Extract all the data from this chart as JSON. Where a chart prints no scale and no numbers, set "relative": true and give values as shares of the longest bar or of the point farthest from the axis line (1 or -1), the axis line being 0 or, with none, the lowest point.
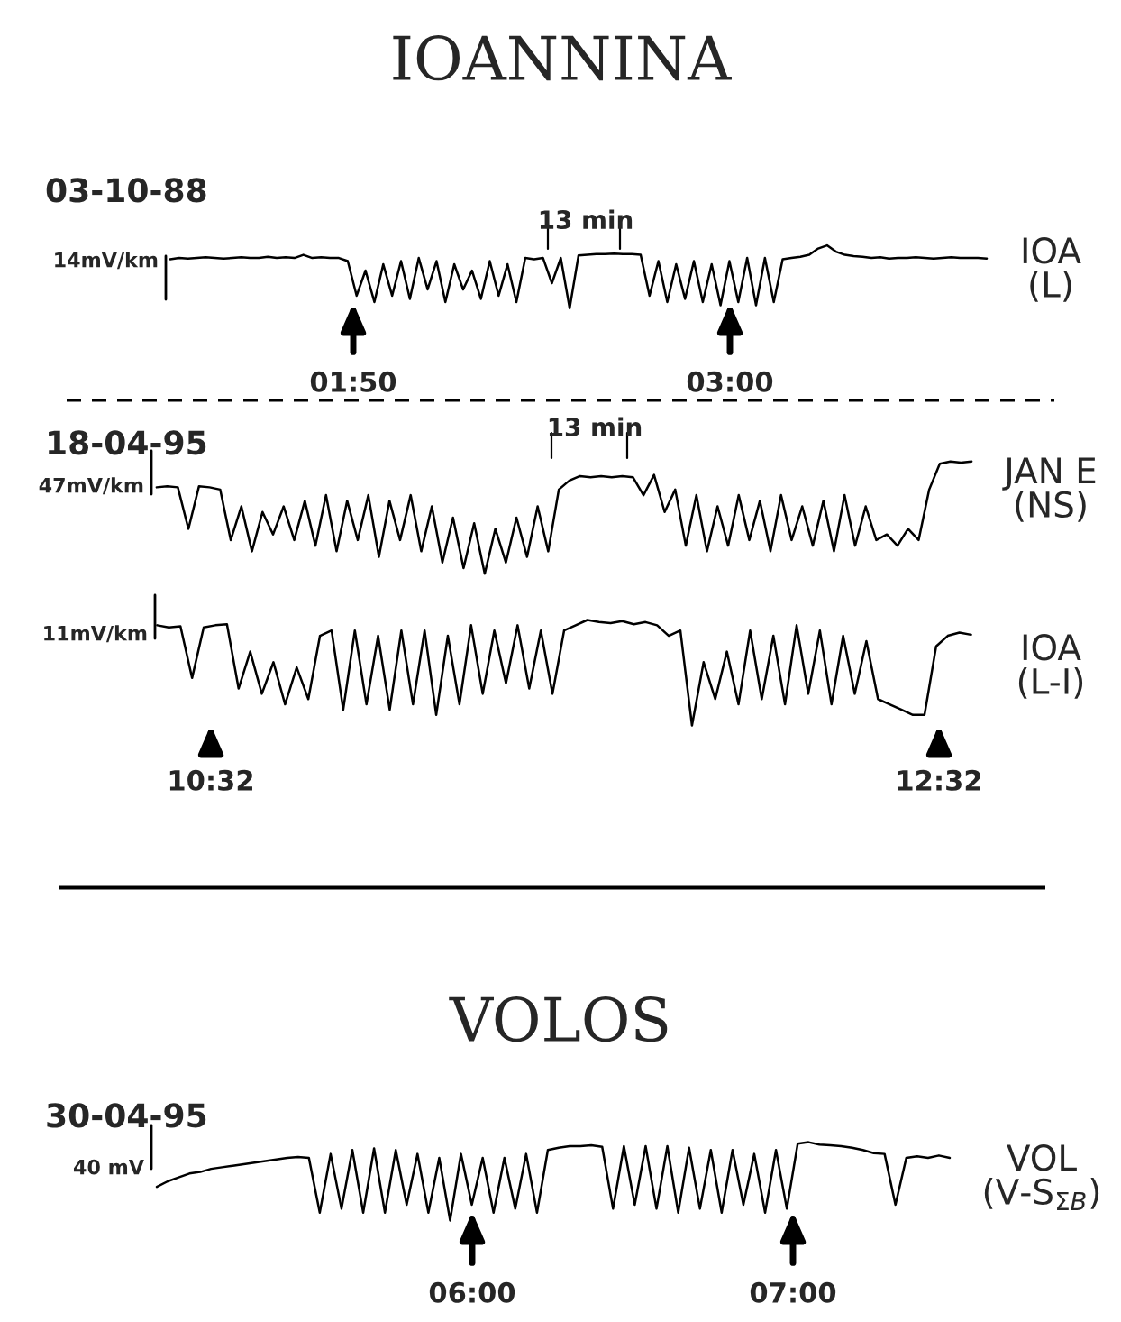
{
  "chart_data": [
    {
      "type": "line",
      "relative": true,
      "title": "IOANNINA",
      "subtitle": "03-10-88",
      "annotations": [
        "14mV/km",
        "13 min",
        "01:50",
        "03:00"
      ],
      "categories": [
        null,
        null,
        null,
        null,
        null,
        null,
        null,
        null,
        null,
        null,
        null,
        null,
        null,
        null,
        null,
        null,
        null,
        null,
        null,
        null,
        null,
        null,
        null,
        null,
        null,
        null,
        null,
        null,
        null,
        null,
        null,
        null,
        null,
        null,
        null,
        null,
        null,
        null,
        null,
        null,
        null,
        null,
        null,
        null,
        null,
        null,
        null,
        null,
        null,
        null,
        null,
        null,
        null,
        null,
        null,
        null,
        null,
        null,
        null,
        null,
        null,
        null,
        null,
        null,
        null,
        null,
        null,
        null,
        null,
        null,
        null,
        null,
        null,
        null,
        null,
        null,
        null,
        null,
        null,
        null,
        null,
        null,
        null,
        null,
        null,
        null,
        null,
        null,
        null,
        null,
        null,
        null,
        null
      ],
      "series": [
        {
          "name": "IOA\n(L)",
          "color": "#000000",
          "values": [
            0.78,
            0.8,
            0.79,
            0.8,
            0.81,
            0.8,
            0.79,
            0.8,
            0.81,
            0.8,
            0.8,
            0.82,
            0.8,
            0.81,
            0.8,
            0.85,
            0.8,
            0.81,
            0.8,
            0.8,
            0.75,
            0.2,
            0.6,
            0.1,
            0.7,
            0.2,
            0.75,
            0.15,
            0.8,
            0.3,
            0.75,
            0.1,
            0.7,
            0.3,
            0.6,
            0.15,
            0.75,
            0.2,
            0.7,
            0.1,
            0.8,
            0.78,
            0.8,
            0.4,
            0.8,
            0.0,
            0.84,
            0.85,
            0.86,
            0.86,
            0.87,
            0.86,
            0.86,
            0.85,
            0.2,
            0.75,
            0.1,
            0.7,
            0.15,
            0.75,
            0.1,
            0.7,
            0.05,
            0.75,
            0.1,
            0.8,
            0.05,
            0.8,
            0.1,
            0.78,
            0.8,
            0.82,
            0.85,
            0.95,
            1.0,
            0.9,
            0.85,
            0.83,
            0.82,
            0.8,
            0.81,
            0.79,
            0.8,
            0.8,
            0.81,
            0.8,
            0.79,
            0.8,
            0.81,
            0.8,
            0.8,
            0.8,
            0.79
          ]
        }
      ]
    },
    {
      "type": "line",
      "relative": true,
      "subtitle": "18-04-95",
      "annotations": [
        "47mV/km",
        "13 min"
      ],
      "categories": [
        null,
        null,
        null,
        null,
        null,
        null,
        null,
        null,
        null,
        null,
        null,
        null,
        null,
        null,
        null,
        null,
        null,
        null,
        null,
        null,
        null,
        null,
        null,
        null,
        null,
        null,
        null,
        null,
        null,
        null,
        null,
        null,
        null,
        null,
        null,
        null,
        null,
        null,
        null,
        null,
        null,
        null,
        null,
        null,
        null,
        null,
        null,
        null,
        null,
        null,
        null,
        null,
        null,
        null,
        null,
        null,
        null,
        null,
        null,
        null,
        null,
        null,
        null,
        null,
        null,
        null,
        null,
        null,
        null,
        null,
        null,
        null,
        null,
        null,
        null,
        null,
        null,
        null
      ],
      "series": [
        {
          "name": "JAN E\n(NS)",
          "color": "#000000",
          "values": [
            0.77,
            0.78,
            0.77,
            0.4,
            0.78,
            0.77,
            0.75,
            0.3,
            0.6,
            0.2,
            0.55,
            0.35,
            0.6,
            0.3,
            0.65,
            0.25,
            0.7,
            0.2,
            0.65,
            0.3,
            0.7,
            0.15,
            0.65,
            0.3,
            0.7,
            0.2,
            0.6,
            0.1,
            0.5,
            0.05,
            0.45,
            0.0,
            0.4,
            0.1,
            0.5,
            0.15,
            0.6,
            0.2,
            0.75,
            0.83,
            0.87,
            0.86,
            0.87,
            0.86,
            0.87,
            0.86,
            0.7,
            0.88,
            0.55,
            0.75,
            0.25,
            0.7,
            0.2,
            0.6,
            0.25,
            0.7,
            0.3,
            0.65,
            0.2,
            0.7,
            0.3,
            0.6,
            0.25,
            0.65,
            0.2,
            0.7,
            0.25,
            0.6,
            0.3,
            0.35,
            0.25,
            0.4,
            0.3,
            0.75,
            0.98,
            1.0,
            0.99,
            1.0
          ]
        }
      ]
    },
    {
      "type": "line",
      "relative": true,
      "annotations": [
        "11mV/km",
        "10:32",
        "12:32"
      ],
      "categories": [
        null,
        null,
        null,
        null,
        null,
        null,
        null,
        null,
        null,
        null,
        null,
        null,
        null,
        null,
        null,
        null,
        null,
        null,
        null,
        null,
        null,
        null,
        null,
        null,
        null,
        null,
        null,
        null,
        null,
        null,
        null,
        null,
        null,
        null,
        null,
        null,
        null,
        null,
        null,
        null,
        null,
        null,
        null,
        null,
        null,
        null,
        null,
        null,
        null,
        null,
        null,
        null,
        null,
        null,
        null,
        null,
        null,
        null,
        null,
        null,
        null,
        null,
        null,
        null,
        null,
        null,
        null,
        null,
        null,
        null,
        null
      ],
      "series": [
        {
          "name": "IOA\n(L-I)",
          "color": "#000000",
          "values": [
            0.95,
            0.93,
            0.94,
            0.45,
            0.93,
            0.95,
            0.96,
            0.35,
            0.7,
            0.3,
            0.6,
            0.2,
            0.55,
            0.25,
            0.85,
            0.9,
            0.15,
            0.9,
            0.2,
            0.85,
            0.15,
            0.9,
            0.2,
            0.9,
            0.1,
            0.85,
            0.2,
            0.95,
            0.3,
            0.9,
            0.4,
            0.95,
            0.35,
            0.9,
            0.3,
            0.9,
            0.95,
            1.0,
            0.98,
            0.97,
            0.99,
            0.96,
            0.98,
            0.95,
            0.85,
            0.9,
            0.0,
            0.6,
            0.25,
            0.7,
            0.2,
            0.9,
            0.25,
            0.85,
            0.2,
            0.95,
            0.3,
            0.9,
            0.2,
            0.85,
            0.3,
            0.8,
            0.25,
            0.2,
            0.15,
            0.1,
            0.1,
            0.75,
            0.85,
            0.88,
            0.86
          ]
        }
      ]
    },
    {
      "type": "line",
      "relative": true,
      "title": "VOLOS",
      "subtitle": "30-04-95",
      "annotations": [
        "40 mV",
        "06:00",
        "07:00"
      ],
      "categories": [
        null,
        null,
        null,
        null,
        null,
        null,
        null,
        null,
        null,
        null,
        null,
        null,
        null,
        null,
        null,
        null,
        null,
        null,
        null,
        null,
        null,
        null,
        null,
        null,
        null,
        null,
        null,
        null,
        null,
        null,
        null,
        null,
        null,
        null,
        null,
        null,
        null,
        null,
        null,
        null,
        null,
        null,
        null,
        null,
        null,
        null,
        null,
        null,
        null,
        null,
        null,
        null,
        null,
        null,
        null,
        null,
        null,
        null,
        null,
        null,
        null,
        null,
        null,
        null,
        null,
        null,
        null,
        null,
        null,
        null,
        null,
        null,
        null,
        null
      ],
      "series": [
        {
          "name": "VOL\n(V-S$_{ΣB}$)",
          "color": "#000000",
          "values": [
            0.43,
            0.5,
            0.55,
            0.6,
            0.62,
            0.66,
            0.68,
            0.7,
            0.72,
            0.74,
            0.76,
            0.78,
            0.8,
            0.81,
            0.8,
            0.1,
            0.85,
            0.15,
            0.9,
            0.1,
            0.92,
            0.1,
            0.9,
            0.2,
            0.85,
            0.1,
            0.8,
            0.0,
            0.85,
            0.2,
            0.8,
            0.1,
            0.8,
            0.15,
            0.85,
            0.1,
            0.9,
            0.93,
            0.95,
            0.95,
            0.96,
            0.94,
            0.15,
            0.95,
            0.2,
            0.95,
            0.15,
            0.95,
            0.1,
            0.93,
            0.15,
            0.9,
            0.1,
            0.9,
            0.2,
            0.85,
            0.1,
            0.9,
            0.15,
            0.98,
            1.0,
            0.97,
            0.96,
            0.95,
            0.93,
            0.9,
            0.86,
            0.85,
            0.2,
            0.8,
            0.82,
            0.8,
            0.83,
            0.8
          ]
        }
      ]
    }
  ]
}
